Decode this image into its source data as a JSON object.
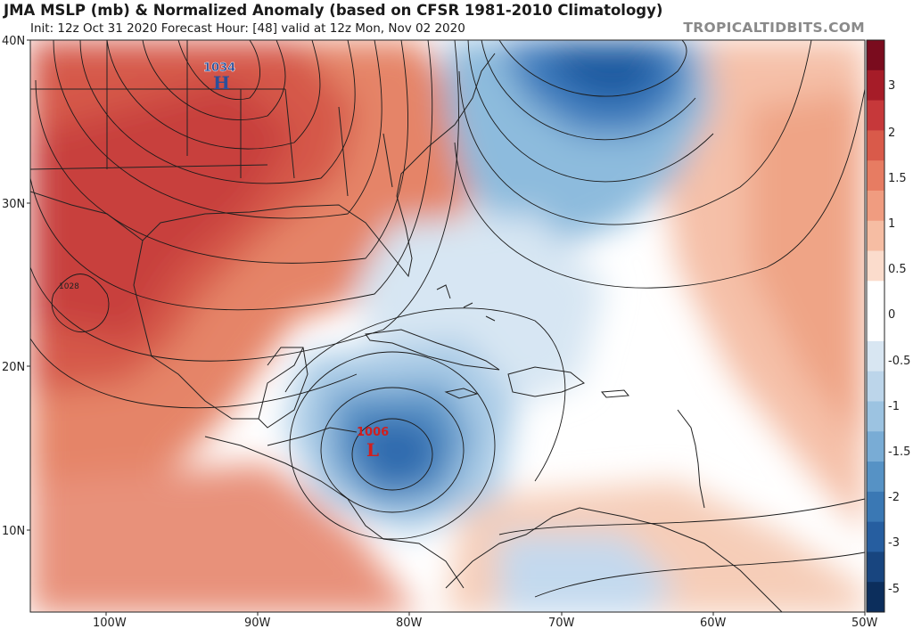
{
  "header": {
    "title": "JMA MSLP (mb) & Normalized Anomaly (based on CFSR 1981-2010 Climatology)",
    "subtitle": "Init: 12z Oct 31 2020   Forecast Hour: [48]   valid at 12z Mon, Nov 02 2020",
    "brand": "TROPICALTIDBITS.COM"
  },
  "map": {
    "lat_labels": [
      "40N",
      "30N",
      "20N",
      "10N"
    ],
    "lon_labels": [
      "100W",
      "90W",
      "80W",
      "70W",
      "60W",
      "50W"
    ],
    "centers": {
      "high": {
        "symbol": "H",
        "value": "1034"
      },
      "low": {
        "symbol": "L",
        "value": "1006"
      }
    },
    "isobar_label": "1028"
  },
  "colorbar": {
    "tick_labels": [
      "3",
      "2",
      "1.5",
      "1",
      "0.5",
      "0",
      "-0.5",
      "-1",
      "-1.5",
      "-2",
      "-3",
      "-5"
    ],
    "colors": [
      "#7a0c1e",
      "#a61c28",
      "#c6383a",
      "#d95a4a",
      "#e77c62",
      "#f09c80",
      "#f6bda3",
      "#fbdccc",
      "#ffffff",
      "#ffffff",
      "#d8e6f2",
      "#bcd5ea",
      "#9cc3e1",
      "#79acd5",
      "#5692c5",
      "#3a78b4",
      "#265ea0",
      "#18457f",
      "#0c2e5c"
    ]
  },
  "colors": {
    "high_label": "#2a4f9a",
    "low_label": "#d01f1f",
    "isobar": "#1a1a1a",
    "land_border": "#222222"
  }
}
